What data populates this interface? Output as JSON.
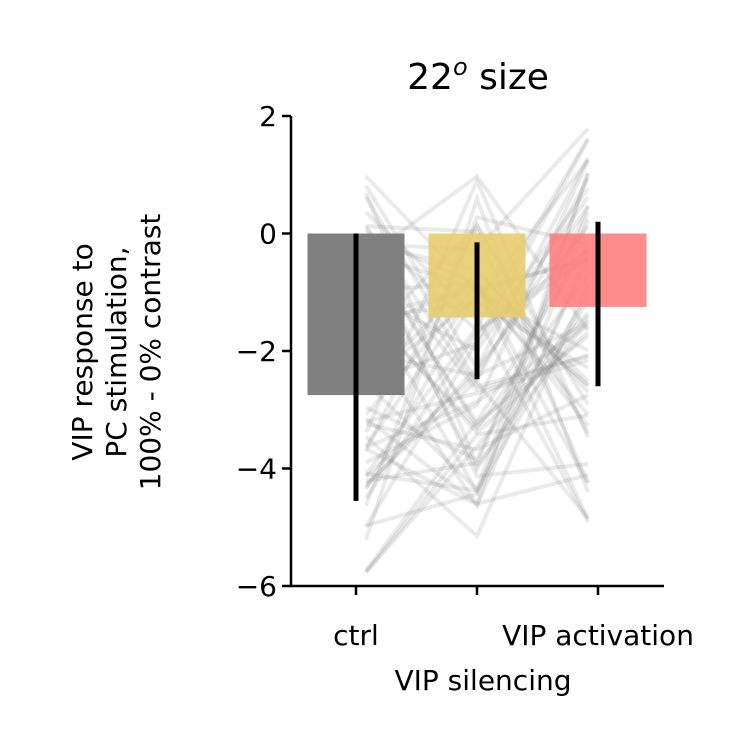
{
  "chart_data": {
    "type": "bar",
    "title_main": "22",
    "title_sup": "o",
    "title_rest": " size",
    "categories": [
      "ctrl",
      "VIP silencing",
      "VIP activation"
    ],
    "values": [
      -2.75,
      -1.43,
      -1.25
    ],
    "error_low": [
      -4.55,
      -2.48,
      -2.6
    ],
    "error_high": [
      0.0,
      -0.15,
      0.2
    ],
    "bar_colors": [
      "#808080",
      "#e8cc6e",
      "#ff8080"
    ],
    "ylabel_lines": [
      "VIP response to",
      "PC stimulation,",
      "100% - 0% contrast"
    ],
    "ylim": [
      -6,
      2
    ],
    "yticks": [
      2,
      0,
      -2,
      -4,
      -6
    ],
    "ytick_labels": [
      "2",
      "0",
      "−2",
      "−4",
      "−6"
    ],
    "xtick_labels": [
      "ctrl",
      "VIP activation"
    ],
    "xlabel": "VIP silencing",
    "grid": false,
    "legend": "none",
    "individual_series_count": 60,
    "individual_color": "#808080"
  }
}
